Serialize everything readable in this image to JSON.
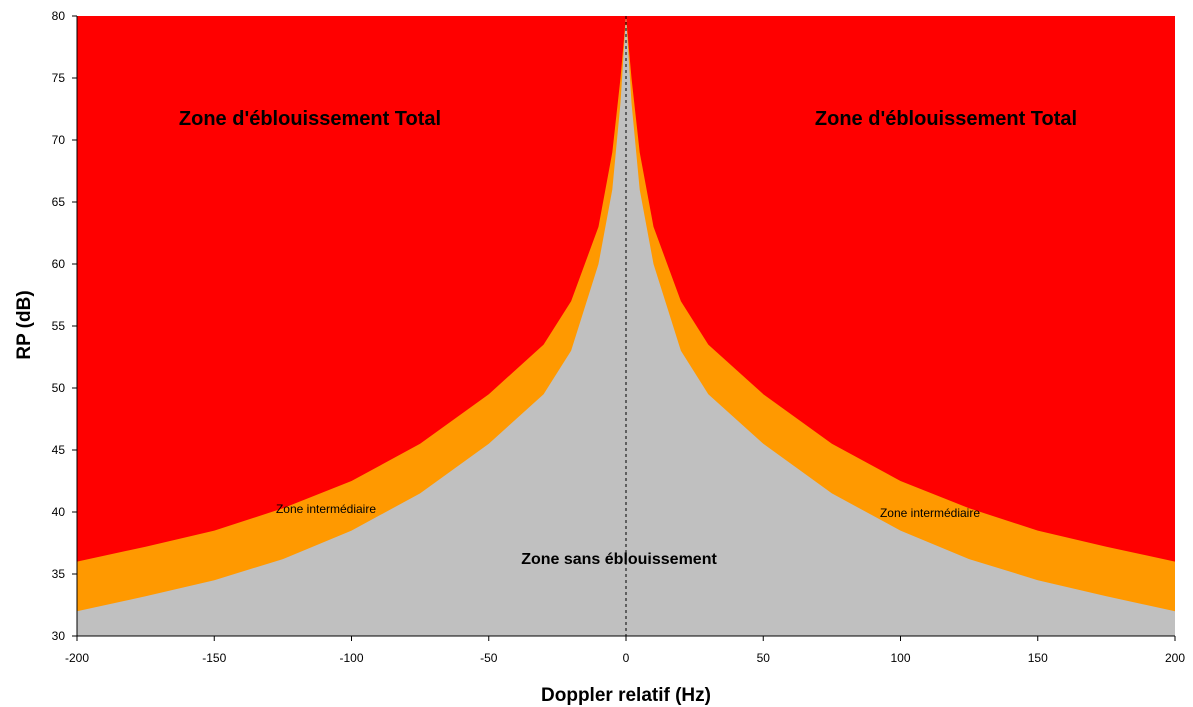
{
  "chart_data": {
    "type": "area",
    "xlabel": "Doppler relatif (Hz)",
    "ylabel": "RP (dB)",
    "xlim": [
      -200,
      200
    ],
    "ylim": [
      30,
      80
    ],
    "x_ticks": [
      "-200",
      "-150",
      "-100",
      "-50",
      "0",
      "50",
      "100",
      "150",
      "200"
    ],
    "y_ticks": [
      "30",
      "35",
      "40",
      "45",
      "50",
      "55",
      "60",
      "65",
      "70",
      "75",
      "80"
    ],
    "grid": false,
    "legend": "none",
    "series": [
      {
        "name": "Zone sans éblouissement",
        "color": "#C0C0C0",
        "x": [
          -200,
          -175,
          -150,
          -125,
          -100,
          -75,
          -50,
          -30,
          -20,
          -10,
          -5,
          -2,
          0,
          2,
          5,
          10,
          20,
          30,
          50,
          75,
          100,
          125,
          150,
          175,
          200
        ],
        "y": [
          32,
          33.2,
          34.5,
          36.2,
          38.5,
          41.5,
          45.5,
          49.5,
          53,
          60,
          66,
          73,
          80,
          73,
          66,
          60,
          53,
          49.5,
          45.5,
          41.5,
          38.5,
          36.2,
          34.5,
          33.2,
          32
        ]
      },
      {
        "name": "Zone intermédiaire",
        "color": "#FF9900",
        "x": [
          -200,
          -175,
          -150,
          -125,
          -100,
          -75,
          -50,
          -30,
          -20,
          -10,
          -5,
          -2,
          0,
          2,
          5,
          10,
          20,
          30,
          50,
          75,
          100,
          125,
          150,
          175,
          200
        ],
        "y": [
          36,
          37.2,
          38.5,
          40.3,
          42.5,
          45.5,
          49.5,
          53.5,
          57,
          63,
          69,
          75,
          80,
          75,
          69,
          63,
          57,
          53.5,
          49.5,
          45.5,
          42.5,
          40.3,
          38.5,
          37.2,
          36
        ]
      },
      {
        "name": "Zone d'éblouissement Total",
        "color": "#FF0000"
      }
    ],
    "annotations": {
      "total_left": "Zone d'éblouissement Total",
      "total_right": "Zone d'éblouissement Total",
      "mid_left": "Zone intermédiaire",
      "mid_right": "Zone intermédiaire",
      "none": "Zone sans éblouissement"
    }
  }
}
